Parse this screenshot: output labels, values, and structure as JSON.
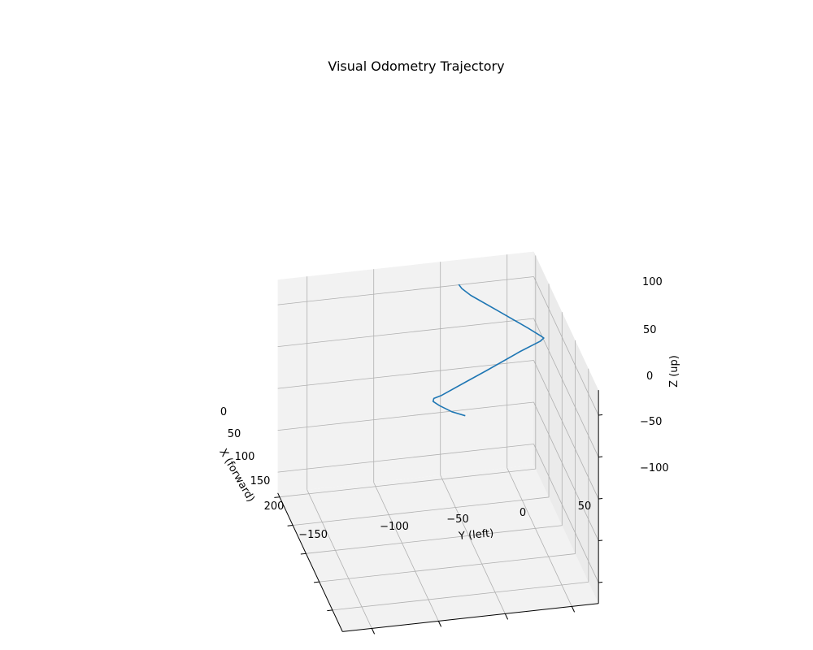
{
  "chart_data": {
    "type": "line",
    "projection": "3d",
    "title": "Visual Odometry Trajectory",
    "xlabel": "X (forward)",
    "ylabel": "Y (left)",
    "zlabel": "Z (up)",
    "x_ticks": [
      "0",
      "50",
      "100",
      "150",
      "200"
    ],
    "y_ticks": [
      "−150",
      "−100",
      "−50",
      "0",
      "50"
    ],
    "z_ticks": [
      "100",
      "50",
      "0",
      "−50",
      "−100"
    ],
    "grid": true,
    "series": [
      {
        "color": "#1f77b4",
        "points": [
          {
            "x": 82,
            "y": -49,
            "z": 6
          },
          {
            "x": 77,
            "y": -58,
            "z": 9
          },
          {
            "x": 70,
            "y": -66,
            "z": 13
          },
          {
            "x": 66,
            "y": -70,
            "z": 16
          },
          {
            "x": 64,
            "y": -69,
            "z": 18
          },
          {
            "x": 63,
            "y": -63,
            "z": 20
          },
          {
            "x": 57,
            "y": -43,
            "z": 29
          },
          {
            "x": 52,
            "y": -27,
            "z": 36
          },
          {
            "x": 43,
            "y": 0,
            "z": 48
          },
          {
            "x": 38,
            "y": 16,
            "z": 54
          },
          {
            "x": 36,
            "y": 19,
            "z": 56
          },
          {
            "x": 35,
            "y": 17,
            "z": 58
          },
          {
            "x": 32,
            "y": 8,
            "z": 67
          },
          {
            "x": 24,
            "y": -14,
            "z": 87
          },
          {
            "x": 17,
            "y": -32,
            "z": 103
          },
          {
            "x": 14,
            "y": -38,
            "z": 110
          },
          {
            "x": 12,
            "y": -40,
            "z": 114
          }
        ]
      }
    ]
  }
}
